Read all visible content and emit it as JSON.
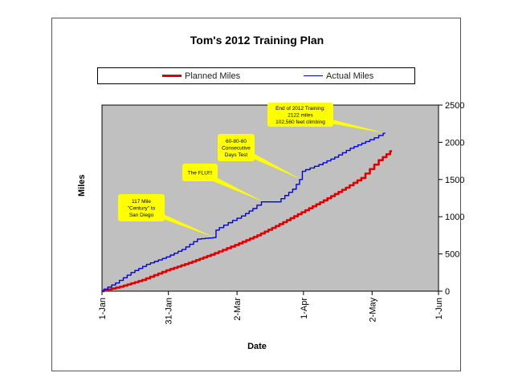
{
  "chart_data": {
    "type": "line",
    "title": "Tom's 2012 Training Plan",
    "xlabel": "Date",
    "ylabel": "Miles",
    "x_ticks": [
      "1-Jan",
      "31-Jan",
      "2-Mar",
      "1-Apr",
      "2-May",
      "1-Jun"
    ],
    "x_range": [
      "2012-01-01",
      "2012-06-01"
    ],
    "ylim": [
      0,
      2500
    ],
    "y_ticks": [
      0,
      500,
      1000,
      1500,
      2000,
      2500
    ],
    "legend_position": "top",
    "grid": false,
    "plot_background": "#c0c0c0",
    "series": [
      {
        "name": "Planned Miles",
        "color": "#dd0000",
        "points": [
          [
            "2012-01-01",
            0
          ],
          [
            "2012-01-10",
            60
          ],
          [
            "2012-01-20",
            150
          ],
          [
            "2012-01-31",
            280
          ],
          [
            "2012-02-10",
            380
          ],
          [
            "2012-02-20",
            490
          ],
          [
            "2012-03-02",
            620
          ],
          [
            "2012-03-12",
            750
          ],
          [
            "2012-03-22",
            900
          ],
          [
            "2012-04-01",
            1060
          ],
          [
            "2012-04-11",
            1220
          ],
          [
            "2012-04-21",
            1390
          ],
          [
            "2012-04-28",
            1520
          ],
          [
            "2012-05-02",
            1640
          ],
          [
            "2012-05-06",
            1760
          ],
          [
            "2012-05-11",
            1880
          ]
        ]
      },
      {
        "name": "Actual Miles",
        "color": "#0000dd",
        "points": [
          [
            "2012-01-01",
            0
          ],
          [
            "2012-01-08",
            110
          ],
          [
            "2012-01-15",
            250
          ],
          [
            "2012-01-22",
            360
          ],
          [
            "2012-01-31",
            460
          ],
          [
            "2012-02-07",
            560
          ],
          [
            "2012-02-14",
            700
          ],
          [
            "2012-02-21",
            720
          ],
          [
            "2012-02-22",
            820
          ],
          [
            "2012-02-28",
            920
          ],
          [
            "2012-03-05",
            1010
          ],
          [
            "2012-03-10",
            1110
          ],
          [
            "2012-03-14",
            1200
          ],
          [
            "2012-03-21",
            1200
          ],
          [
            "2012-03-28",
            1370
          ],
          [
            "2012-03-31",
            1500
          ],
          [
            "2012-04-01",
            1610
          ],
          [
            "2012-04-09",
            1700
          ],
          [
            "2012-04-16",
            1800
          ],
          [
            "2012-04-23",
            1920
          ],
          [
            "2012-04-30",
            2010
          ],
          [
            "2012-05-04",
            2060
          ],
          [
            "2012-05-08",
            2122
          ]
        ]
      }
    ],
    "annotations": [
      {
        "lines": [
          "117 Mile",
          "\"Century\" to",
          "San Diego"
        ],
        "target": [
          "2012-02-21",
          720
        ]
      },
      {
        "lines": [
          "The FLU!!!"
        ],
        "target": [
          "2012-03-14",
          1200
        ]
      },
      {
        "lines": [
          "60-80-60",
          "Consecutive",
          "Days Test"
        ],
        "target": [
          "2012-03-31",
          1500
        ]
      },
      {
        "lines": [
          "End of 2012 Training:",
          "2122 miles",
          "102,560 feet climbing"
        ],
        "target": [
          "2012-05-08",
          2122
        ]
      }
    ]
  }
}
